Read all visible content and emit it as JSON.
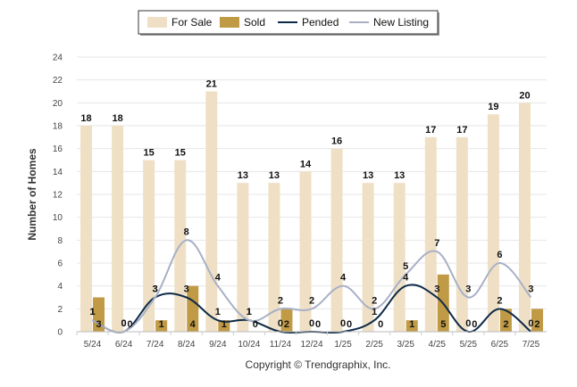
{
  "chart_data": {
    "type": "bar",
    "categories": [
      "5/24",
      "6/24",
      "7/24",
      "8/24",
      "9/24",
      "10/24",
      "11/24",
      "12/24",
      "1/25",
      "2/25",
      "3/25",
      "4/25",
      "5/25",
      "6/25",
      "7/25"
    ],
    "series": [
      {
        "name": "For Sale",
        "kind": "bar",
        "color": "#efe0c5",
        "values": [
          18,
          18,
          15,
          15,
          21,
          13,
          13,
          14,
          16,
          13,
          13,
          17,
          17,
          19,
          20
        ],
        "labels": [
          "18",
          "18",
          "15",
          "15",
          "21",
          "13",
          "13",
          "14",
          "16",
          "13",
          "13",
          "17",
          "17",
          "19",
          "20"
        ]
      },
      {
        "name": "Sold",
        "kind": "bar",
        "color": "#c09a45",
        "values": [
          3,
          0,
          1,
          4,
          1,
          0,
          2,
          0,
          0,
          0,
          1,
          5,
          0,
          2,
          2
        ],
        "labels": [
          "3",
          "0",
          "1",
          "4",
          "1",
          "0",
          "2",
          "0",
          "0",
          "0",
          "1",
          "5",
          "0",
          "2",
          "2"
        ]
      },
      {
        "name": "Pended",
        "kind": "line",
        "color": "#0e2a48",
        "values": [
          1,
          0,
          3,
          3,
          1,
          1,
          0,
          0,
          0,
          1,
          4,
          3,
          0,
          2,
          0
        ],
        "labels": [
          "1",
          "0",
          "3",
          "3",
          "1",
          "1",
          "0",
          "0",
          "0",
          "1",
          "4",
          "3",
          "0",
          "2",
          "0"
        ]
      },
      {
        "name": "New Listing",
        "kind": "line",
        "color": "#a9b0c6",
        "values": [
          1,
          0,
          3,
          8,
          4,
          1,
          2,
          2,
          4,
          2,
          5,
          7,
          3,
          6,
          3
        ],
        "labels": [
          "1",
          "0",
          "3",
          "8",
          "4",
          "1",
          "2",
          "2",
          "4",
          "2",
          "5",
          "7",
          "3",
          "6",
          "3"
        ]
      }
    ],
    "ylabel": "Number of Homes",
    "ylim": [
      0,
      24
    ],
    "yticks": [
      "0",
      "2",
      "4",
      "6",
      "8",
      "10",
      "12",
      "14",
      "16",
      "18",
      "20",
      "22",
      "24"
    ],
    "grid": true,
    "legend": "top-center"
  },
  "copyright": "Copyright © Trendgraphix, Inc."
}
